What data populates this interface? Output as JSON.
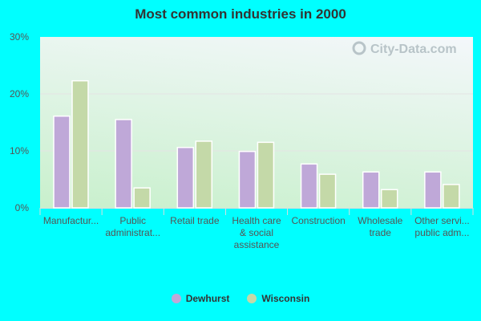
{
  "chart_data": {
    "type": "bar",
    "title": "Most common industries in 2000",
    "categories": [
      [
        "Manufactur..."
      ],
      [
        "Public",
        "administrat..."
      ],
      [
        "Retail trade"
      ],
      [
        "Health care",
        "& social",
        "assistance"
      ],
      [
        "Construction"
      ],
      [
        "Wholesale",
        "trade"
      ],
      [
        "Other servi...",
        "public adm..."
      ]
    ],
    "series": [
      {
        "name": "Dewhurst",
        "color": "#bfa8d8",
        "values": [
          16.1,
          15.5,
          10.6,
          9.9,
          7.7,
          6.3,
          6.3
        ]
      },
      {
        "name": "Wisconsin",
        "color": "#c4d9a8",
        "values": [
          22.3,
          3.5,
          11.7,
          11.5,
          5.9,
          3.2,
          4.1
        ]
      }
    ],
    "yticks": [
      "0%",
      "10%",
      "20%",
      "30%"
    ],
    "ylim": [
      0,
      30
    ],
    "grid": true,
    "legend": "bottom",
    "watermark": "City-Data.com"
  }
}
